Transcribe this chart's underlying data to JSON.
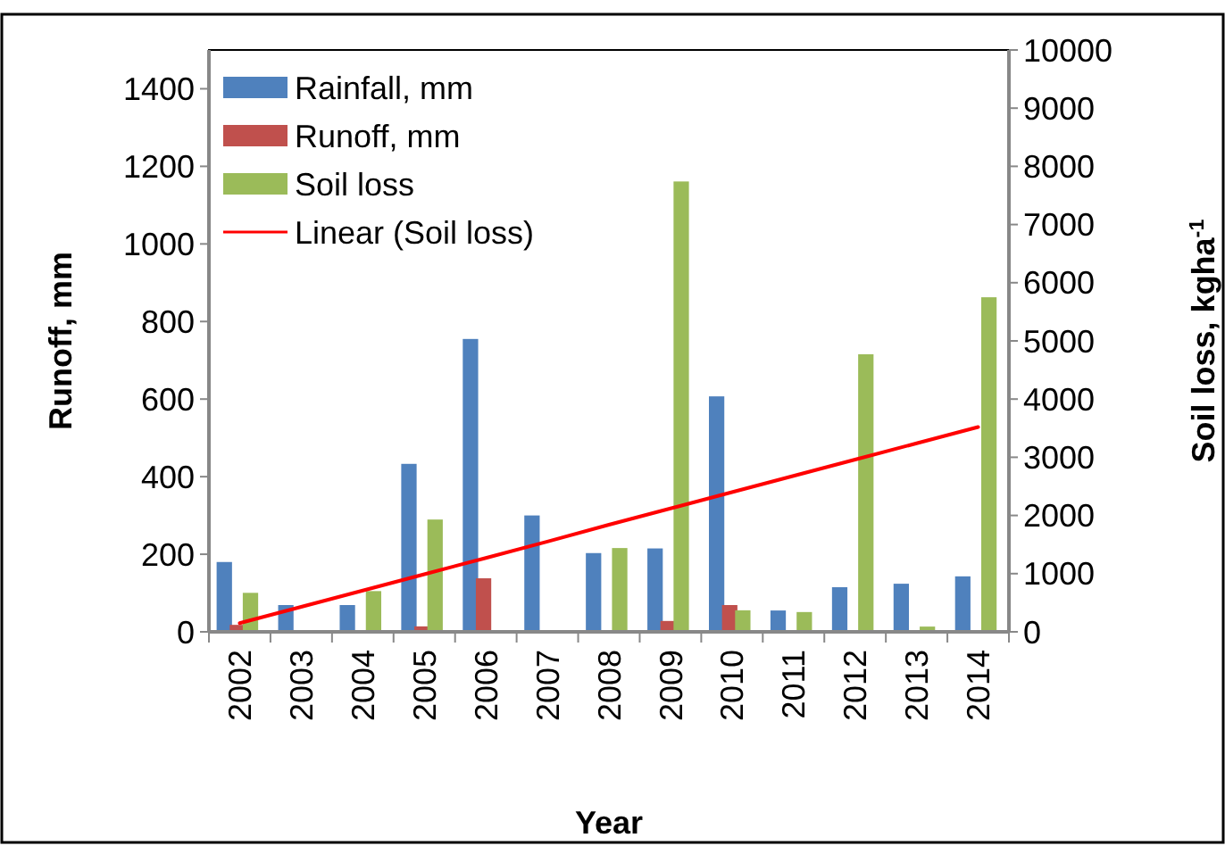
{
  "chart_data": {
    "type": "bar",
    "xlabel": "Year",
    "ylabel": "Runoff, mm",
    "y2label": "Soil loss, kgha$^{-1}$",
    "categories": [
      "2002",
      "2003",
      "2004",
      "2005",
      "2006",
      "2007",
      "2008",
      "2009",
      "2010",
      "2011",
      "2012",
      "2013",
      "2014"
    ],
    "series": [
      {
        "name": "Rainfall, mm",
        "color": "#4f81bd",
        "values": [
          180,
          69,
          69,
          433,
          755,
          300,
          203,
          215,
          607,
          55,
          115,
          124,
          143
        ]
      },
      {
        "name": "Runoff, mm",
        "color": "#c0504d",
        "values": [
          18,
          0,
          0,
          14,
          138,
          3,
          0,
          28,
          69,
          0,
          2,
          0,
          0
        ]
      },
      {
        "name": "Soil loss",
        "color": "#9bbb59",
        "axis": "y2",
        "values": [
          670,
          0,
          700,
          1930,
          0,
          20,
          1440,
          7740,
          370,
          340,
          4770,
          90,
          5750
        ]
      },
      {
        "name": "Linear (Soil loss)",
        "type": "line",
        "color": "#ff0000",
        "axis": "y2",
        "values": [
          150,
          430,
          710,
          990,
          1270,
          1550,
          1840,
          2120,
          2400,
          2680,
          2960,
          3240,
          3520
        ]
      }
    ],
    "ylim": [
      0,
      1500
    ],
    "yticks": [
      0,
      200,
      400,
      600,
      800,
      1000,
      1200,
      1400
    ],
    "y2lim": [
      0,
      10000
    ],
    "y2ticks": [
      0,
      1000,
      2000,
      3000,
      4000,
      5000,
      6000,
      7000,
      8000,
      9000,
      10000
    ],
    "legend": "top left",
    "grid": false
  }
}
